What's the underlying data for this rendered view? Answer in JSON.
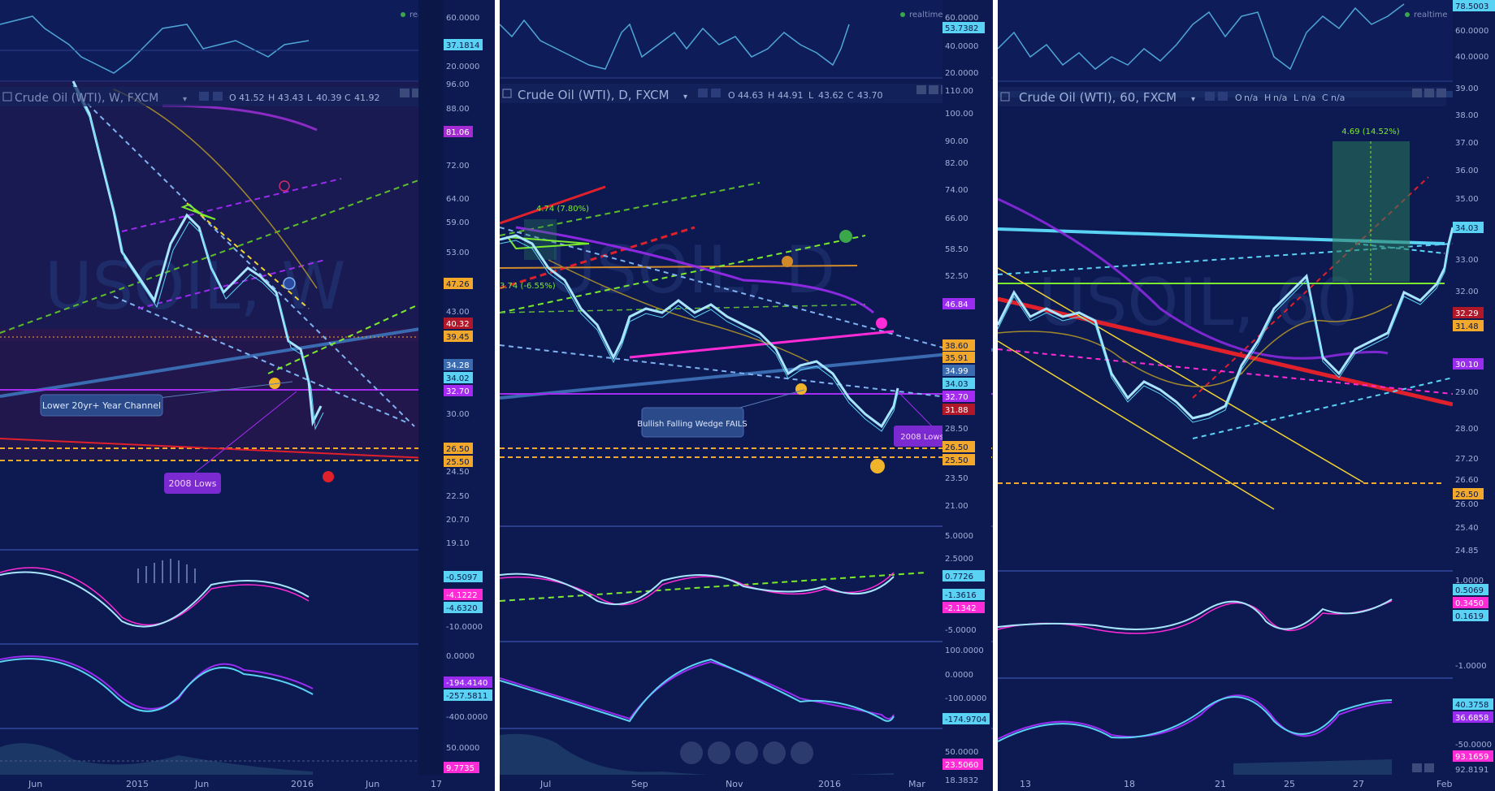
{
  "colors": {
    "bg": "#0d1a52",
    "cyan": "#5ad2f4",
    "magenta": "#ff2bd6",
    "purple": "#9a2bf0",
    "orange": "#f2a82a",
    "red": "#e0202a",
    "green": "#7bea2e",
    "yellow": "#f0d232"
  },
  "panels": [
    {
      "symbol": "Crude Oil (WTI), W, FXCM",
      "ohlc": {
        "o_label": "O",
        "o": "41.52",
        "h_label": "H",
        "h": "43.43",
        "l_label": "L",
        "l": "40.39",
        "c_label": "C",
        "c": "41.92"
      },
      "realtime": "realtime",
      "top_axis": [
        "60.0000",
        "37.1814",
        "20.0000"
      ],
      "main_axis": [
        "96.00",
        "88.00",
        "81.06",
        "72.00",
        "64.00",
        "59.00",
        "53.00",
        "47.26",
        "43.00",
        "40.32",
        "39.45",
        "34.28",
        "34.02",
        "32.70",
        "30.00",
        "26.50",
        "25.50",
        "24.50",
        "22.50",
        "20.70",
        "19.10"
      ],
      "osc1_axis": [
        "-0.5097",
        "-4.1222",
        "-4.6320",
        "-10.0000"
      ],
      "osc2_axis": [
        "0.0000",
        "-194.4140",
        "-257.5811",
        "-400.0000"
      ],
      "osc3_axis": [
        "50.0000",
        "9.7735"
      ],
      "time_axis": [
        "Jun",
        "2015",
        "Jun",
        "2016",
        "Jun",
        "17"
      ],
      "annotations": {
        "channel": "Lower 20yr+ Year Channel",
        "lows": "2008 Lows"
      },
      "watermark": "USOIL, W"
    },
    {
      "symbol": "Crude Oil (WTI), D, FXCM",
      "ohlc": {
        "o_label": "O",
        "o": "44.63",
        "h_label": "H",
        "h": "44.91",
        "l_label": "L",
        "l": "43.62",
        "c_label": "C",
        "c": "43.70"
      },
      "realtime": "realtime",
      "top_axis": [
        "60.0000",
        "53.7382",
        "40.0000",
        "20.0000"
      ],
      "main_axis": [
        "110.00",
        "100.00",
        "90.00",
        "82.00",
        "74.00",
        "66.00",
        "58.50",
        "52.50",
        "46.84",
        "38.60",
        "35.91",
        "34.99",
        "34.03",
        "32.70",
        "31.88",
        "28.50",
        "26.50",
        "25.50",
        "23.50",
        "21.00"
      ],
      "osc1_axis": [
        "5.0000",
        "2.5000",
        "0.7726",
        "-1.3616",
        "-2.1342",
        "-5.0000"
      ],
      "osc2_axis": [
        "100.0000",
        "0.0000",
        "-100.0000",
        "-174.9704"
      ],
      "osc3_axis": [
        "50.0000",
        "23.5060",
        "18.3832"
      ],
      "time_axis": [
        "Jul",
        "Sep",
        "Nov",
        "2016",
        "Mar"
      ],
      "annotations": {
        "wedge": "Bullish Falling Wedge FAILS",
        "lows": "2008 Lows",
        "measure_up": "4.74 (7.80%)",
        "measure_down": "3.74 (-6.55%)"
      },
      "watermark": "USOIL, D"
    },
    {
      "symbol": "Crude Oil (WTI), 60, FXCM",
      "ohlc": {
        "o_label": "O",
        "o": "n/a",
        "h_label": "H",
        "h": "n/a",
        "l_label": "L",
        "l": "n/a",
        "c_label": "C",
        "c": "n/a"
      },
      "realtime": "realtime",
      "top_axis": [
        "78.5003",
        "60.0000",
        "40.0000"
      ],
      "main_axis": [
        "39.00",
        "38.00",
        "37.00",
        "36.00",
        "35.00",
        "34.03",
        "33.00",
        "32.00",
        "32.29",
        "31.48",
        "30.10",
        "29.00",
        "28.00",
        "27.20",
        "26.60",
        "26.50",
        "26.00",
        "25.40",
        "24.85"
      ],
      "osc1_axis": [
        "1.0000",
        "0.5069",
        "0.3450",
        "0.1619",
        "-1.0000"
      ],
      "osc2_axis": [
        "40.3758",
        "36.6858",
        "-50.0000",
        "93.1659",
        "92.8191"
      ],
      "time_axis": [
        "13",
        "18",
        "21",
        "25",
        "27",
        "Feb"
      ],
      "annotations": {
        "measure": "4.69 (14.52%)"
      },
      "watermark": "USOIL, 60"
    }
  ],
  "nav_buttons": [
    "zoom-out",
    "reset",
    "zoom-in",
    "scroll-left",
    "scroll-right"
  ]
}
